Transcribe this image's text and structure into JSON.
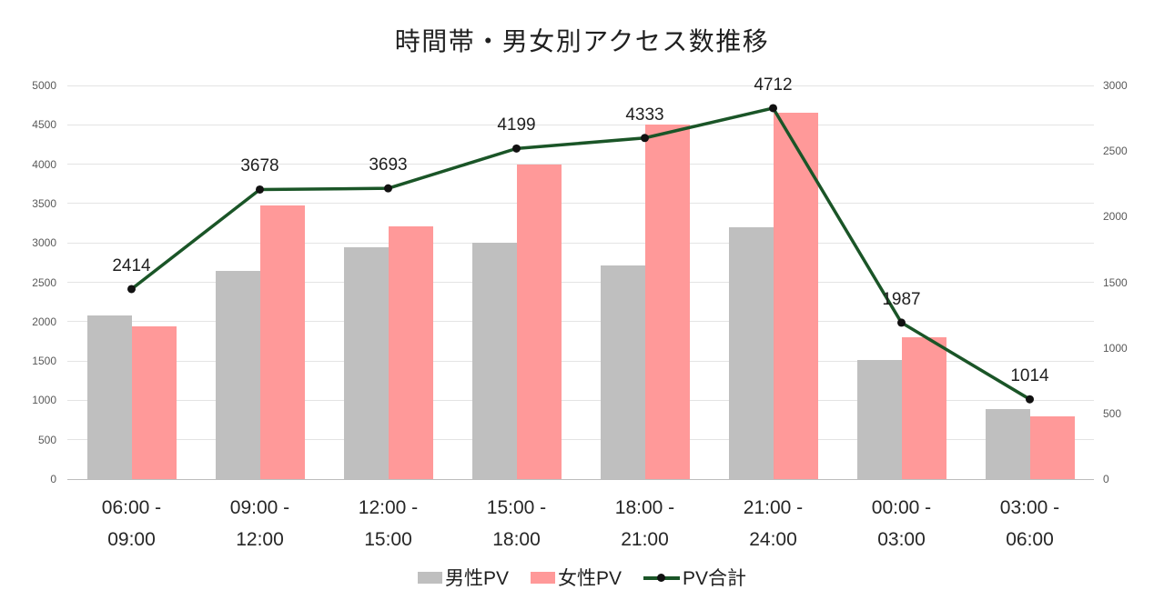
{
  "title": "時間帯・男女別アクセス数推移",
  "chart_data": {
    "type": "bar",
    "subtype": "combo-bar-line",
    "title": "時間帯・男女別アクセス数推移",
    "categories": [
      "06:00 - 09:00",
      "09:00 - 12:00",
      "12:00 - 15:00",
      "15:00 - 18:00",
      "18:00 - 21:00",
      "21:00 - 24:00",
      "00:00 - 03:00",
      "03:00 - 06:00"
    ],
    "series": [
      {
        "name": "男性PV",
        "type": "bar",
        "axis": "right",
        "color": "#bfbfbf",
        "values": [
          1250,
          1590,
          1770,
          1800,
          1630,
          1920,
          905,
          535
        ]
      },
      {
        "name": "女性PV",
        "type": "bar",
        "axis": "right",
        "color": "#ff9999",
        "values": [
          1164,
          2088,
          1923,
          2399,
          2703,
          2792,
          1082,
          479
        ]
      },
      {
        "name": "PV合計",
        "type": "line",
        "axis": "left",
        "color": "#1a5527",
        "marker_color": "#111111",
        "show_data_labels": true,
        "values": [
          2414,
          3678,
          3693,
          4199,
          4333,
          4712,
          1987,
          1014
        ]
      }
    ],
    "left_axis": {
      "min": 0,
      "max": 5000,
      "step": 500,
      "ticks": [
        0,
        500,
        1000,
        1500,
        2000,
        2500,
        3000,
        3500,
        4000,
        4500,
        5000
      ]
    },
    "right_axis": {
      "min": 0,
      "max": 3000,
      "step": 500,
      "ticks": [
        0,
        500,
        1000,
        1500,
        2000,
        2500,
        3000
      ]
    },
    "grid": true,
    "legend_position": "bottom",
    "colors": {
      "grid": "#e4e4e4",
      "axis_text": "#595959",
      "label_text": "#262626",
      "background": "#ffffff"
    }
  }
}
